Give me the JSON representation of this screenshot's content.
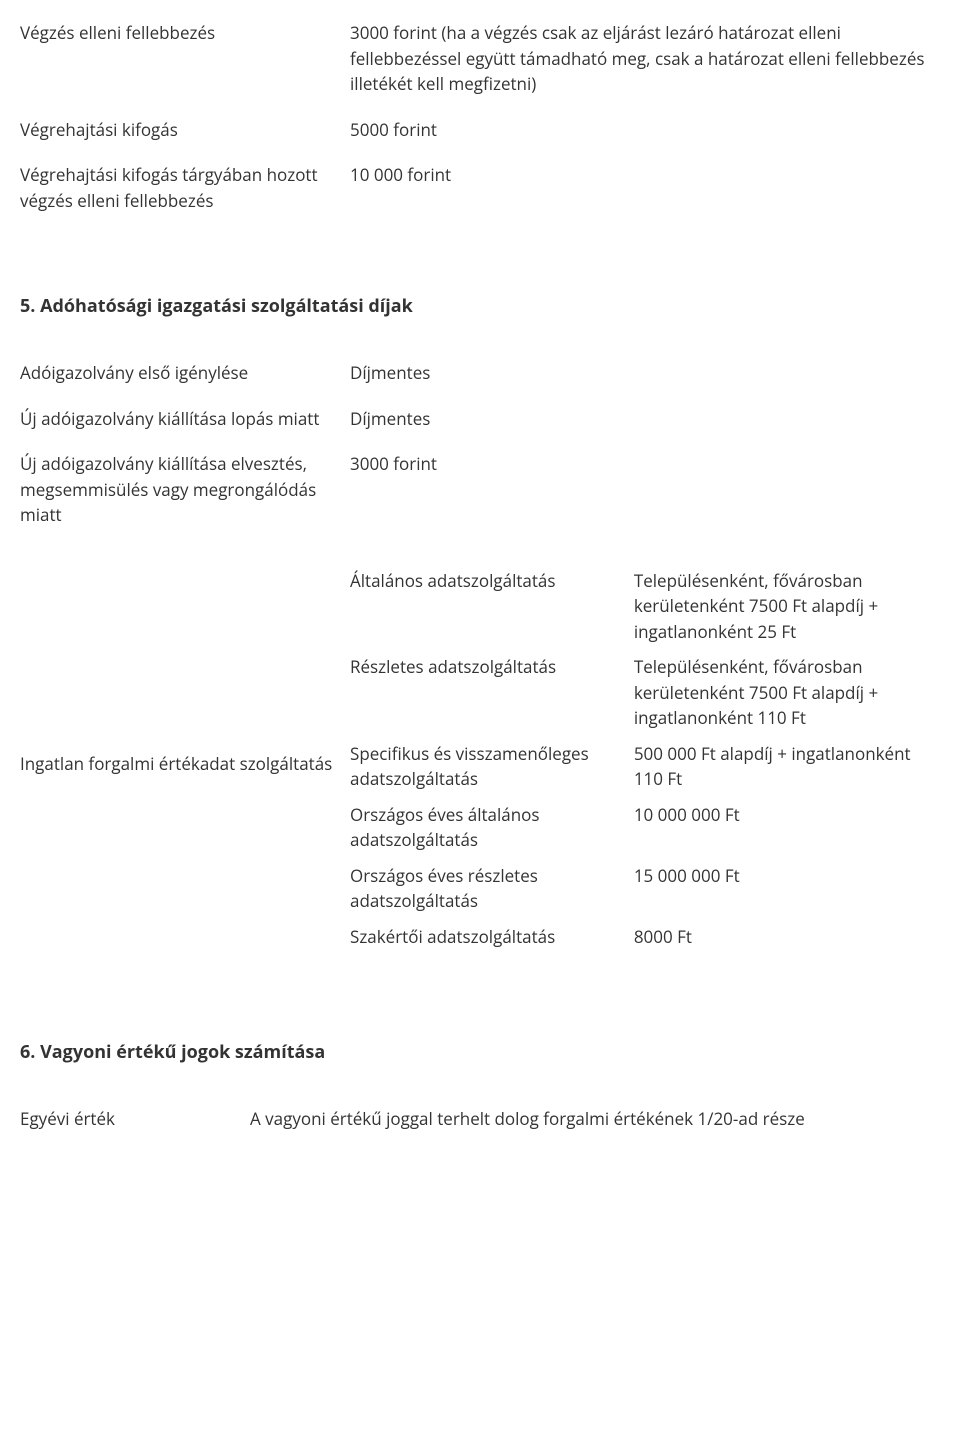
{
  "section4": {
    "rows": [
      {
        "label": "Végzés elleni fellebbezés",
        "value": "3000 forint (ha a végzés csak az eljárást lezáró határozat elleni fellebbezéssel együtt támadható meg, csak a határozat elleni fellebbezés illetékét kell megfizetni)"
      },
      {
        "label": "Végrehajtási kifogás",
        "value": "5000 forint"
      },
      {
        "label": "Végrehajtási kifogás tárgyában hozott végzés elleni fellebbezés",
        "value": "10 000 forint"
      }
    ]
  },
  "section5": {
    "heading": "5. Adóhatósági igazgatási szolgáltatási díjak",
    "rows": [
      {
        "label": "Adóigazolvány első igénylése",
        "value": "Díjmentes"
      },
      {
        "label": "Új adóigazolvány kiállítása lopás miatt",
        "value": "Díjmentes"
      },
      {
        "label": "Új adóigazolvány kiállítása elvesztés, megsemmisülés vagy megrongálódás miatt",
        "value": "3000 forint"
      }
    ],
    "complex": {
      "label": "Ingatlan forgalmi értékadat szolgáltatás",
      "items": [
        {
          "name": "Általános adatszolgáltatás",
          "value": "Településenként, fővárosban kerületenként 7500 Ft alapdíj + ingatlanonként 25 Ft"
        },
        {
          "name": "Részletes adatszolgáltatás",
          "value": "Településenként, fővárosban kerületenként 7500 Ft alapdíj + ingatlanonként 110 Ft"
        },
        {
          "name": "Specifikus és visszamenőleges adatszolgáltatás",
          "value": "500 000 Ft alapdíj + ingatlanonként 110 Ft"
        },
        {
          "name": "Országos éves általános adatszolgáltatás",
          "value": "10 000 000 Ft"
        },
        {
          "name": "Országos éves részletes adatszolgáltatás",
          "value": "15 000 000 Ft"
        },
        {
          "name": "Szakértői adatszolgáltatás",
          "value": "8000 Ft"
        }
      ]
    }
  },
  "section6": {
    "heading": "6. Vagyoni értékű jogok számítása",
    "rows": [
      {
        "label": "Egyévi érték",
        "value": "A vagyoni értékű joggal terhelt dolog forgalmi értékének 1/20-ad része"
      }
    ]
  }
}
